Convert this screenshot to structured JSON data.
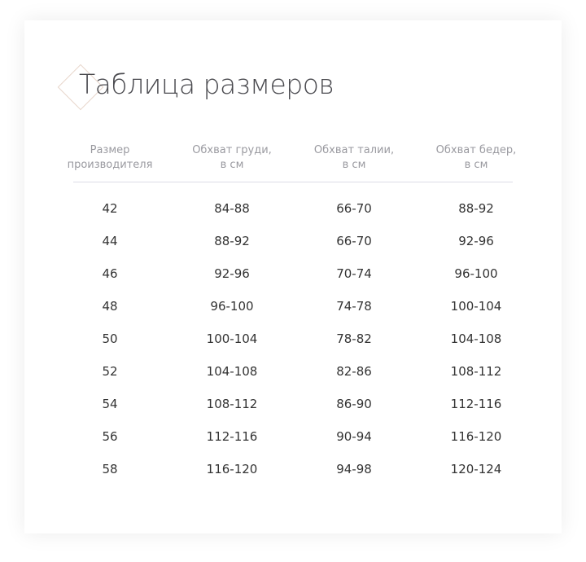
{
  "title": "Таблица размеров",
  "headers": [
    [
      "Размер",
      "производителя"
    ],
    [
      "Обхват груди,",
      "в см"
    ],
    [
      "Обхват талии,",
      "в см"
    ],
    [
      "Обхват бедер,",
      "в см"
    ]
  ],
  "rows": [
    [
      "42",
      "84-88",
      "66-70",
      "88-92"
    ],
    [
      "44",
      "88-92",
      "66-70",
      "92-96"
    ],
    [
      "46",
      "92-96",
      "70-74",
      "96-100"
    ],
    [
      "48",
      "96-100",
      "74-78",
      "100-104"
    ],
    [
      "50",
      "100-104",
      "78-82",
      "104-108"
    ],
    [
      "52",
      "104-108",
      "82-86",
      "108-112"
    ],
    [
      "54",
      "108-112",
      "86-90",
      "112-116"
    ],
    [
      "56",
      "112-116",
      "90-94",
      "116-120"
    ],
    [
      "58",
      "116-120",
      "94-98",
      "120-124"
    ]
  ]
}
